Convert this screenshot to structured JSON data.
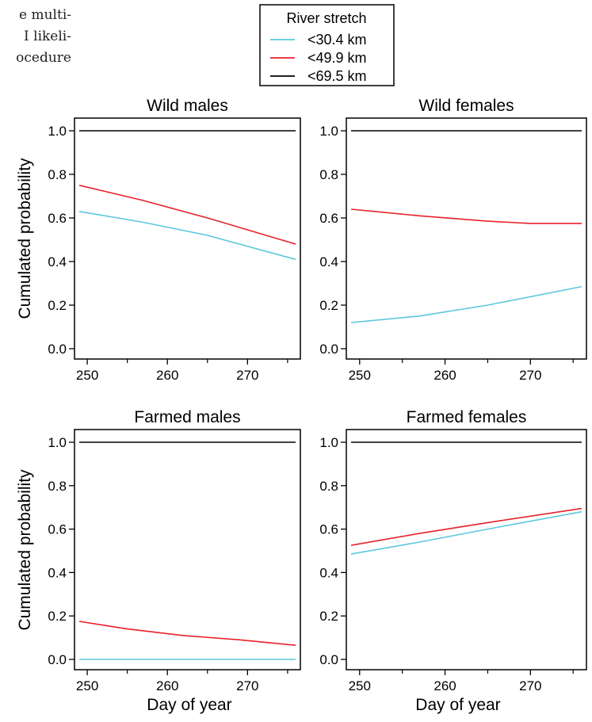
{
  "page_fragment": {
    "lines": [
      "e multi-",
      "I likeli-",
      "ocedure"
    ]
  },
  "colors": {
    "lt30": "#5bc8dc",
    "lt50": "#e8212b",
    "lt70": "#000000"
  },
  "chart_data": {
    "type": "line",
    "legend": {
      "title": "River stretch",
      "placement": "top-center",
      "entries": [
        {
          "key": "lt30",
          "label": "<30.4 km"
        },
        {
          "key": "lt50",
          "label": "<49.9 km"
        },
        {
          "key": "lt70",
          "label": "<69.5 km"
        }
      ]
    },
    "xlabel": "Day of year",
    "ylabel": "Cumulated probability",
    "xlim": [
      249,
      276
    ],
    "ylim": [
      0,
      1
    ],
    "xticks": [
      250,
      260,
      270
    ],
    "yticks": [
      "0.0",
      "0.2",
      "0.4",
      "0.6",
      "0.8",
      "1.0"
    ],
    "panels": [
      {
        "title": "Wild males",
        "series": [
          {
            "key": "lt30",
            "name": "<30.4 km",
            "x": [
              249,
              257,
              265,
              276
            ],
            "y": [
              0.63,
              0.58,
              0.52,
              0.41
            ]
          },
          {
            "key": "lt50",
            "name": "<49.9 km",
            "x": [
              249,
              257,
              265,
              276
            ],
            "y": [
              0.75,
              0.68,
              0.6,
              0.48
            ]
          },
          {
            "key": "lt70",
            "name": "<69.5 km",
            "x": [
              249,
              276
            ],
            "y": [
              1.0,
              1.0
            ]
          }
        ]
      },
      {
        "title": "Wild females",
        "series": [
          {
            "key": "lt30",
            "name": "<30.4 km",
            "x": [
              249,
              257,
              265,
              276
            ],
            "y": [
              0.12,
              0.15,
              0.2,
              0.285
            ]
          },
          {
            "key": "lt50",
            "name": "<49.9 km",
            "x": [
              249,
              257,
              265,
              270,
              276
            ],
            "y": [
              0.64,
              0.61,
              0.585,
              0.575,
              0.575
            ]
          },
          {
            "key": "lt70",
            "name": "<69.5 km",
            "x": [
              249,
              276
            ],
            "y": [
              1.0,
              1.0
            ]
          }
        ]
      },
      {
        "title": "Farmed males",
        "series": [
          {
            "key": "lt30",
            "name": "<30.4 km",
            "x": [
              249,
              276
            ],
            "y": [
              0.0,
              0.0
            ]
          },
          {
            "key": "lt50",
            "name": "<49.9 km",
            "x": [
              249,
              255,
              262,
              269,
              276
            ],
            "y": [
              0.175,
              0.14,
              0.11,
              0.09,
              0.065
            ]
          },
          {
            "key": "lt70",
            "name": "<69.5 km",
            "x": [
              249,
              276
            ],
            "y": [
              1.0,
              1.0
            ]
          }
        ]
      },
      {
        "title": "Farmed females",
        "series": [
          {
            "key": "lt30",
            "name": "<30.4 km",
            "x": [
              249,
              257,
              265,
              276
            ],
            "y": [
              0.485,
              0.54,
              0.6,
              0.68
            ]
          },
          {
            "key": "lt50",
            "name": "<49.9 km",
            "x": [
              249,
              257,
              265,
              276
            ],
            "y": [
              0.525,
              0.58,
              0.63,
              0.695
            ]
          },
          {
            "key": "lt70",
            "name": "<69.5 km",
            "x": [
              249,
              276
            ],
            "y": [
              1.0,
              1.0
            ]
          }
        ]
      }
    ]
  }
}
